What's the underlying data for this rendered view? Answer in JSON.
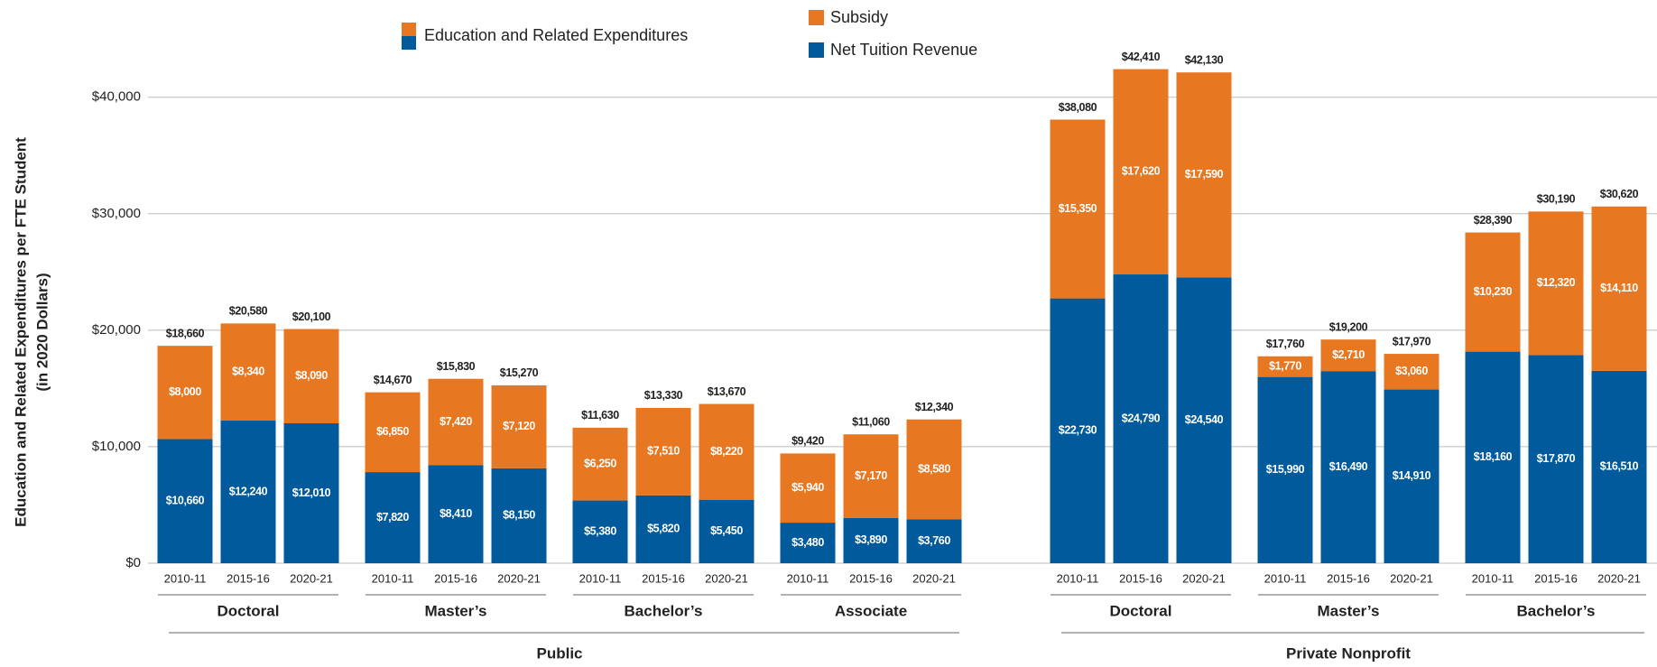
{
  "chart_data": {
    "type": "stacked-bar",
    "ylabel": [
      "Education and Related Expenditures per FTE Student",
      "(in 2020 Dollars)"
    ],
    "legend_total": "Education and Related Expenditures",
    "groups": [
      {
        "name": "Public",
        "subgroups": [
          {
            "name": "Doctoral",
            "categories": [
              "2010-11",
              "2015-16",
              "2020-21"
            ]
          },
          {
            "name": "Master’s",
            "categories": [
              "2010-11",
              "2015-16",
              "2020-21"
            ]
          },
          {
            "name": "Bachelor’s",
            "categories": [
              "2010-11",
              "2015-16",
              "2020-21"
            ]
          },
          {
            "name": "Associate",
            "categories": [
              "2010-11",
              "2015-16",
              "2020-21"
            ]
          }
        ]
      },
      {
        "name": "Private Nonprofit",
        "subgroups": [
          {
            "name": "Doctoral",
            "categories": [
              "2010-11",
              "2015-16",
              "2020-21"
            ]
          },
          {
            "name": "Master’s",
            "categories": [
              "2010-11",
              "2015-16",
              "2020-21"
            ]
          },
          {
            "name": "Bachelor’s",
            "categories": [
              "2010-11",
              "2015-16",
              "2020-21"
            ]
          }
        ]
      }
    ],
    "series": [
      {
        "name": "Net Tuition Revenue",
        "color": "#005a9c",
        "values": [
          10660,
          12240,
          12010,
          7820,
          8410,
          8150,
          5380,
          5820,
          5450,
          3480,
          3890,
          3760,
          22730,
          24790,
          24540,
          15990,
          16490,
          14910,
          18160,
          17870,
          16510
        ],
        "value_labels": [
          "$10,660",
          "$12,240",
          "$12,010",
          "$7,820",
          "$8,410",
          "$8,150",
          "$5,380",
          "$5,820",
          "$5,450",
          "$3,480",
          "$3,890",
          "$3,760",
          "$22,730",
          "$24,790",
          "$24,540",
          "$15,990",
          "$16,490",
          "$14,910",
          "$18,160",
          "$17,870",
          "$16,510"
        ]
      },
      {
        "name": "Subsidy",
        "color": "#e87722",
        "values": [
          8000,
          8340,
          8090,
          6850,
          7420,
          7120,
          6250,
          7510,
          8220,
          5940,
          7170,
          8580,
          15350,
          17620,
          17590,
          1770,
          2710,
          3060,
          10230,
          12320,
          14110
        ],
        "value_labels": [
          "$8,000",
          "$8,340",
          "$8,090",
          "$6,850",
          "$7,420",
          "$7,120",
          "$6,250",
          "$7,510",
          "$8,220",
          "$5,940",
          "$7,170",
          "$8,580",
          "$15,350",
          "$17,620",
          "$17,590",
          "$1,770",
          "$2,710",
          "$3,060",
          "$10,230",
          "$12,320",
          "$14,110"
        ]
      }
    ],
    "totals": {
      "values": [
        18660,
        20580,
        20100,
        14670,
        15830,
        15270,
        11630,
        13330,
        13670,
        9420,
        11060,
        12340,
        38080,
        42410,
        42130,
        17760,
        19200,
        17970,
        28390,
        30190,
        30620
      ],
      "value_labels": [
        "$18,660",
        "$20,580",
        "$20,100",
        "$14,670",
        "$15,830",
        "$15,270",
        "$11,630",
        "$13,330",
        "$13,670",
        "$9,420",
        "$11,060",
        "$12,340",
        "$38,080",
        "$42,410",
        "$42,130",
        "$17,760",
        "$19,200",
        "$17,970",
        "$28,390",
        "$30,190",
        "$30,620"
      ]
    },
    "ylim": [
      0,
      43000
    ],
    "yticks": [
      {
        "value": 0,
        "label": "$0"
      },
      {
        "value": 10000,
        "label": "$10,000"
      },
      {
        "value": 20000,
        "label": "$20,000"
      },
      {
        "value": 30000,
        "label": "$30,000"
      },
      {
        "value": 40000,
        "label": "$40,000"
      }
    ],
    "grid": true
  }
}
